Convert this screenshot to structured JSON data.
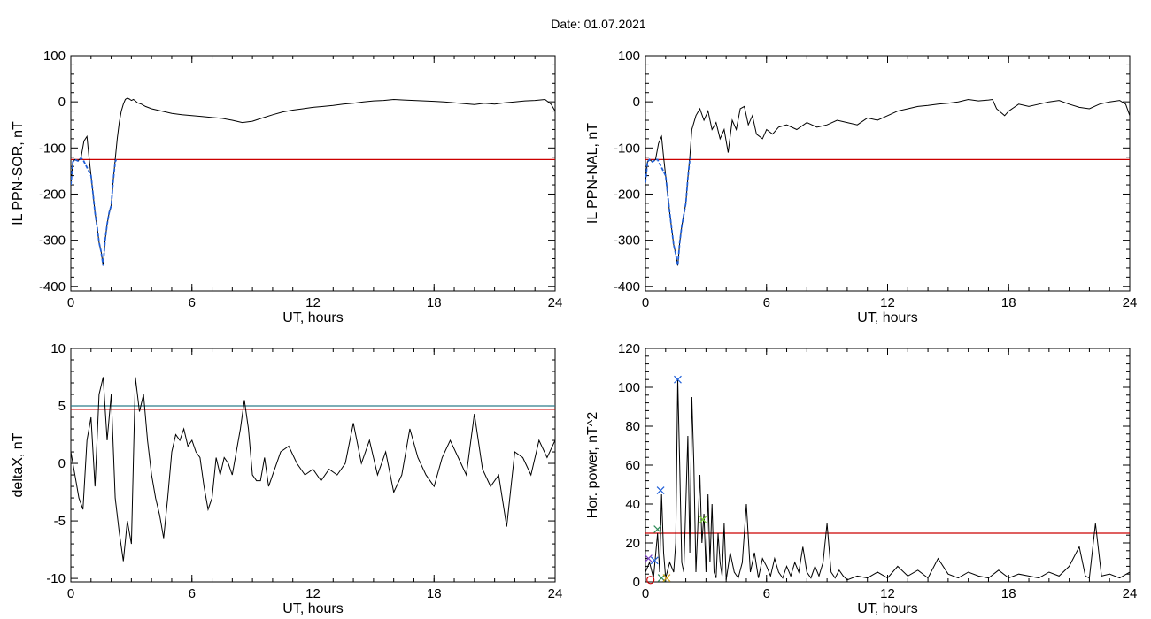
{
  "title": "Date:  01.07.2021",
  "chart_data": [
    {
      "type": "line",
      "xlabel": "UT, hours",
      "ylabel": "IL PPN-SOR, nT",
      "xlim": [
        0,
        24
      ],
      "ylim": [
        -410,
        100
      ],
      "xticks": [
        0,
        6,
        12,
        18,
        24
      ],
      "yticks": [
        -400,
        -300,
        -200,
        -100,
        0,
        100
      ],
      "threshold": {
        "value": -125,
        "color": "#cc0000"
      },
      "colors": {
        "series": "#000000",
        "highlight": "#1f5fd8"
      },
      "series": [
        {
          "x": [
            0,
            0.1,
            0.2,
            0.35,
            0.5,
            0.65,
            0.8,
            0.9,
            1.0,
            1.1,
            1.2,
            1.3,
            1.4,
            1.5,
            1.6,
            1.7,
            1.8,
            1.9,
            2.0,
            2.1,
            2.2,
            2.3,
            2.4,
            2.5,
            2.6,
            2.7,
            2.8,
            2.9,
            3.0,
            3.1,
            3.2,
            3.3,
            3.5,
            3.7,
            4.0,
            4.5,
            5.0,
            5.5,
            6.0,
            6.5,
            7.0,
            7.5,
            8.0,
            8.5,
            9.0,
            9.5,
            10.0,
            10.5,
            11.0,
            11.5,
            12.0,
            12.5,
            13.0,
            13.5,
            14.0,
            14.5,
            15.0,
            15.5,
            16.0,
            16.5,
            17.0,
            17.5,
            18.0,
            18.5,
            19.0,
            19.5,
            20.0,
            20.5,
            21.0,
            21.5,
            22.0,
            22.5,
            23.0,
            23.5,
            23.8,
            24.0
          ],
          "y": [
            -180,
            -130,
            -125,
            -128,
            -122,
            -85,
            -75,
            -120,
            -160,
            -200,
            -240,
            -270,
            -305,
            -325,
            -355,
            -300,
            -265,
            -240,
            -225,
            -170,
            -125,
            -80,
            -45,
            -20,
            -5,
            5,
            8,
            6,
            3,
            5,
            2,
            -2,
            -5,
            -10,
            -15,
            -20,
            -25,
            -28,
            -30,
            -32,
            -34,
            -36,
            -40,
            -45,
            -42,
            -35,
            -28,
            -22,
            -18,
            -15,
            -12,
            -10,
            -8,
            -5,
            -3,
            0,
            2,
            3,
            5,
            4,
            3,
            2,
            1,
            0,
            -2,
            -4,
            -6,
            -3,
            -5,
            -2,
            0,
            2,
            3,
            5,
            -5,
            -20
          ]
        }
      ],
      "highlight": {
        "x": [
          0,
          0.1,
          0.2,
          0.35,
          0.5,
          0.6,
          1.0,
          1.1,
          1.2,
          1.3,
          1.4,
          1.5,
          1.6,
          1.7,
          1.8,
          1.9,
          2.0,
          2.1,
          2.2,
          2.25
        ],
        "y": [
          -180,
          -130,
          -125,
          -128,
          -122,
          -125,
          -160,
          -200,
          -240,
          -270,
          -305,
          -325,
          -355,
          -300,
          -265,
          -240,
          -225,
          -170,
          -130,
          -125
        ]
      }
    },
    {
      "type": "line",
      "xlabel": "UT, hours",
      "ylabel": "IL PPN-NAL, nT",
      "xlim": [
        0,
        24
      ],
      "ylim": [
        -410,
        100
      ],
      "xticks": [
        0,
        6,
        12,
        18,
        24
      ],
      "yticks": [
        -400,
        -300,
        -200,
        -100,
        0,
        100
      ],
      "threshold": {
        "value": -125,
        "color": "#cc0000"
      },
      "colors": {
        "series": "#000000",
        "highlight": "#1f5fd8"
      },
      "series": [
        {
          "x": [
            0,
            0.1,
            0.2,
            0.35,
            0.5,
            0.65,
            0.8,
            0.9,
            1.0,
            1.1,
            1.2,
            1.3,
            1.4,
            1.5,
            1.6,
            1.7,
            1.8,
            1.9,
            2.0,
            2.1,
            2.2,
            2.3,
            2.5,
            2.7,
            2.9,
            3.1,
            3.3,
            3.5,
            3.7,
            3.9,
            4.1,
            4.3,
            4.5,
            4.7,
            4.9,
            5.1,
            5.3,
            5.5,
            5.8,
            6.0,
            6.3,
            6.6,
            7.0,
            7.5,
            8.0,
            8.5,
            9.0,
            9.5,
            10.0,
            10.5,
            11.0,
            11.5,
            12.0,
            12.5,
            13.0,
            13.5,
            14.0,
            14.5,
            15.0,
            15.5,
            16.0,
            16.5,
            17.0,
            17.2,
            17.4,
            17.8,
            18.0,
            18.5,
            19.0,
            19.5,
            20.0,
            20.5,
            21.0,
            21.5,
            22.0,
            22.5,
            23.0,
            23.5,
            23.8,
            24.0
          ],
          "y": [
            -175,
            -130,
            -125,
            -130,
            -125,
            -90,
            -75,
            -120,
            -160,
            -200,
            -240,
            -275,
            -310,
            -330,
            -355,
            -305,
            -270,
            -245,
            -220,
            -165,
            -120,
            -60,
            -30,
            -15,
            -40,
            -20,
            -60,
            -45,
            -80,
            -60,
            -110,
            -40,
            -60,
            -15,
            -10,
            -50,
            -30,
            -70,
            -80,
            -60,
            -70,
            -55,
            -50,
            -60,
            -45,
            -55,
            -50,
            -40,
            -45,
            -50,
            -35,
            -40,
            -30,
            -20,
            -15,
            -10,
            -8,
            -5,
            -3,
            0,
            5,
            2,
            4,
            5,
            -15,
            -30,
            -20,
            -5,
            -10,
            -5,
            0,
            3,
            -5,
            -12,
            -15,
            -5,
            0,
            3,
            -5,
            -30
          ]
        }
      ],
      "highlight": {
        "x": [
          0,
          0.1,
          0.2,
          0.35,
          0.5,
          0.6,
          1.0,
          1.1,
          1.2,
          1.3,
          1.4,
          1.5,
          1.6,
          1.7,
          1.8,
          1.9,
          2.0,
          2.1,
          2.2,
          2.25
        ],
        "y": [
          -175,
          -130,
          -125,
          -130,
          -125,
          -125,
          -160,
          -200,
          -240,
          -275,
          -310,
          -330,
          -355,
          -305,
          -270,
          -245,
          -220,
          -165,
          -125,
          -120
        ]
      }
    },
    {
      "type": "line",
      "xlabel": "UT, hours",
      "ylabel": "deltaX, nT",
      "xlim": [
        0,
        24
      ],
      "ylim": [
        -10.3,
        10
      ],
      "xticks": [
        0,
        6,
        12,
        18,
        24
      ],
      "yticks": [
        -10,
        -5,
        0,
        5,
        10
      ],
      "thresholds": [
        {
          "value": 5,
          "color": "#2e7d8c"
        },
        {
          "value": 4.7,
          "color": "#cc0000"
        }
      ],
      "colors": {
        "series": "#000000"
      },
      "series": [
        {
          "x": [
            0,
            0.2,
            0.4,
            0.6,
            0.8,
            1.0,
            1.2,
            1.4,
            1.6,
            1.8,
            2.0,
            2.2,
            2.4,
            2.6,
            2.8,
            3.0,
            3.2,
            3.4,
            3.6,
            3.8,
            4.0,
            4.2,
            4.4,
            4.6,
            4.8,
            5.0,
            5.2,
            5.4,
            5.6,
            5.8,
            6.0,
            6.2,
            6.4,
            6.6,
            6.8,
            7.0,
            7.2,
            7.4,
            7.6,
            7.8,
            8.0,
            8.2,
            8.4,
            8.6,
            8.8,
            9.0,
            9.2,
            9.4,
            9.6,
            9.8,
            10.0,
            10.4,
            10.8,
            11.2,
            11.6,
            12.0,
            12.4,
            12.8,
            13.2,
            13.6,
            14.0,
            14.4,
            14.8,
            15.2,
            15.6,
            16.0,
            16.4,
            16.8,
            17.2,
            17.6,
            18.0,
            18.4,
            18.8,
            19.2,
            19.6,
            20.0,
            20.4,
            20.8,
            21.2,
            21.6,
            22.0,
            22.4,
            22.8,
            23.2,
            23.6,
            24.0
          ],
          "y": [
            1,
            -1,
            -3,
            -4,
            2,
            4,
            -2,
            6,
            7.5,
            2,
            6,
            -3,
            -6,
            -8.5,
            -5,
            -7,
            7.5,
            4.5,
            6,
            2,
            -1,
            -3,
            -4.5,
            -6.5,
            -3,
            1,
            2.5,
            2,
            3,
            1.5,
            2,
            1,
            0.5,
            -2,
            -4,
            -3,
            0.5,
            -1,
            0.5,
            0,
            -1,
            1,
            3,
            5.5,
            3,
            -1,
            -1.5,
            -1.5,
            0.5,
            -2,
            -1,
            1,
            1.5,
            0,
            -1,
            -0.5,
            -1.5,
            -0.5,
            -1,
            0,
            3.5,
            0,
            2,
            -1,
            1,
            -2.5,
            -1,
            3,
            0.5,
            -1,
            -2,
            0.5,
            2,
            0.5,
            -1,
            4.3,
            -0.5,
            -2,
            -1,
            -5.5,
            1,
            0.5,
            -1,
            2,
            0.5,
            2
          ]
        }
      ]
    },
    {
      "type": "line",
      "xlabel": "UT, hours",
      "ylabel": "Hor. power, nT^2",
      "xlim": [
        0,
        24
      ],
      "ylim": [
        0,
        120
      ],
      "xticks": [
        0,
        6,
        12,
        18,
        24
      ],
      "yticks": [
        0,
        20,
        40,
        60,
        80,
        100,
        120
      ],
      "threshold": {
        "value": 25,
        "color": "#cc0000"
      },
      "colors": {
        "series": "#000000"
      },
      "series": [
        {
          "x": [
            0,
            0.2,
            0.4,
            0.6,
            0.7,
            0.8,
            0.9,
            1.0,
            1.2,
            1.4,
            1.5,
            1.6,
            1.7,
            1.8,
            1.9,
            2.0,
            2.1,
            2.2,
            2.3,
            2.4,
            2.5,
            2.6,
            2.7,
            2.8,
            2.9,
            3.0,
            3.1,
            3.2,
            3.3,
            3.4,
            3.5,
            3.6,
            3.7,
            3.8,
            3.9,
            4.0,
            4.2,
            4.4,
            4.6,
            4.8,
            5.0,
            5.2,
            5.4,
            5.6,
            5.8,
            6.0,
            6.2,
            6.4,
            6.6,
            6.8,
            7.0,
            7.2,
            7.4,
            7.6,
            7.8,
            8.0,
            8.2,
            8.4,
            8.6,
            8.8,
            9.0,
            9.2,
            9.4,
            9.6,
            9.8,
            10.0,
            10.5,
            11.0,
            11.5,
            12.0,
            12.5,
            13.0,
            13.5,
            14.0,
            14.5,
            15.0,
            15.5,
            16.0,
            16.5,
            17.0,
            17.5,
            18.0,
            18.5,
            19.0,
            19.5,
            20.0,
            20.5,
            21.0,
            21.5,
            21.8,
            22.0,
            22.3,
            22.6,
            23.0,
            23.5,
            24.0
          ],
          "y": [
            5,
            10,
            2,
            25,
            5,
            45,
            15,
            2,
            10,
            5,
            20,
            104,
            60,
            10,
            5,
            40,
            75,
            15,
            95,
            60,
            5,
            30,
            55,
            20,
            35,
            5,
            45,
            10,
            40,
            5,
            2,
            25,
            10,
            3,
            30,
            1,
            15,
            5,
            2,
            10,
            40,
            5,
            15,
            2,
            12,
            8,
            3,
            12,
            5,
            2,
            8,
            3,
            10,
            5,
            18,
            5,
            2,
            8,
            3,
            10,
            30,
            5,
            2,
            6,
            3,
            1,
            3,
            2,
            5,
            2,
            8,
            3,
            6,
            2,
            12,
            4,
            2,
            5,
            3,
            2,
            6,
            2,
            4,
            3,
            2,
            5,
            3,
            8,
            18,
            3,
            2,
            30,
            3,
            4,
            2,
            5
          ]
        }
      ],
      "markers": [
        {
          "x": 1.6,
          "y": 104,
          "color": "#1f5fd8",
          "shape": "x"
        },
        {
          "x": 0.75,
          "y": 47,
          "color": "#1f5fd8",
          "shape": "x"
        },
        {
          "x": 0.6,
          "y": 27,
          "color": "#2e8b57",
          "shape": "x"
        },
        {
          "x": 2.85,
          "y": 32,
          "color": "#7ccf3c",
          "shape": "x"
        },
        {
          "x": 0.15,
          "y": 12,
          "color": "#7a3fbf",
          "shape": "x"
        },
        {
          "x": 0.45,
          "y": 11,
          "color": "#1f5fd8",
          "shape": "x"
        },
        {
          "x": 0.8,
          "y": 2,
          "color": "#2e8b57",
          "shape": "x"
        },
        {
          "x": 0.25,
          "y": 1,
          "color": "#cc0000",
          "shape": "circle"
        },
        {
          "x": 1.05,
          "y": 2,
          "color": "#d4a017",
          "shape": "x"
        }
      ]
    }
  ]
}
